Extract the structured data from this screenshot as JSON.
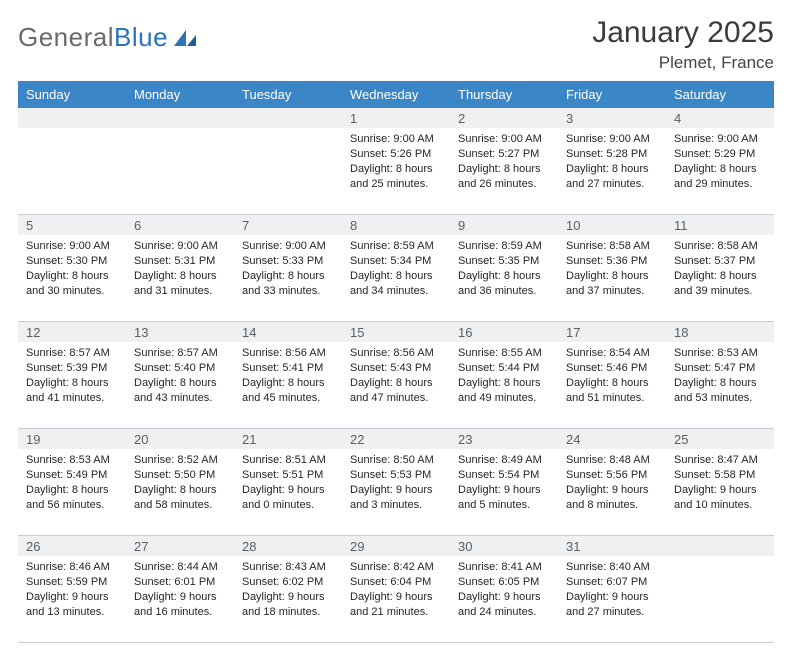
{
  "brand": {
    "name_gray": "General",
    "name_blue": "Blue"
  },
  "title": "January 2025",
  "location": "Plemet, France",
  "colors": {
    "header_bg": "#3b86c6",
    "header_text": "#ffffff",
    "daynum_bg": "#eef0f2",
    "border": "#c7cdd2",
    "logo_gray": "#6a6a6a",
    "logo_blue": "#2d73b7"
  },
  "day_headers": [
    "Sunday",
    "Monday",
    "Tuesday",
    "Wednesday",
    "Thursday",
    "Friday",
    "Saturday"
  ],
  "weeks": [
    [
      null,
      null,
      null,
      {
        "n": "1",
        "sunrise": "9:00 AM",
        "sunset": "5:26 PM",
        "daylight": "8 hours and 25 minutes."
      },
      {
        "n": "2",
        "sunrise": "9:00 AM",
        "sunset": "5:27 PM",
        "daylight": "8 hours and 26 minutes."
      },
      {
        "n": "3",
        "sunrise": "9:00 AM",
        "sunset": "5:28 PM",
        "daylight": "8 hours and 27 minutes."
      },
      {
        "n": "4",
        "sunrise": "9:00 AM",
        "sunset": "5:29 PM",
        "daylight": "8 hours and 29 minutes."
      }
    ],
    [
      {
        "n": "5",
        "sunrise": "9:00 AM",
        "sunset": "5:30 PM",
        "daylight": "8 hours and 30 minutes."
      },
      {
        "n": "6",
        "sunrise": "9:00 AM",
        "sunset": "5:31 PM",
        "daylight": "8 hours and 31 minutes."
      },
      {
        "n": "7",
        "sunrise": "9:00 AM",
        "sunset": "5:33 PM",
        "daylight": "8 hours and 33 minutes."
      },
      {
        "n": "8",
        "sunrise": "8:59 AM",
        "sunset": "5:34 PM",
        "daylight": "8 hours and 34 minutes."
      },
      {
        "n": "9",
        "sunrise": "8:59 AM",
        "sunset": "5:35 PM",
        "daylight": "8 hours and 36 minutes."
      },
      {
        "n": "10",
        "sunrise": "8:58 AM",
        "sunset": "5:36 PM",
        "daylight": "8 hours and 37 minutes."
      },
      {
        "n": "11",
        "sunrise": "8:58 AM",
        "sunset": "5:37 PM",
        "daylight": "8 hours and 39 minutes."
      }
    ],
    [
      {
        "n": "12",
        "sunrise": "8:57 AM",
        "sunset": "5:39 PM",
        "daylight": "8 hours and 41 minutes."
      },
      {
        "n": "13",
        "sunrise": "8:57 AM",
        "sunset": "5:40 PM",
        "daylight": "8 hours and 43 minutes."
      },
      {
        "n": "14",
        "sunrise": "8:56 AM",
        "sunset": "5:41 PM",
        "daylight": "8 hours and 45 minutes."
      },
      {
        "n": "15",
        "sunrise": "8:56 AM",
        "sunset": "5:43 PM",
        "daylight": "8 hours and 47 minutes."
      },
      {
        "n": "16",
        "sunrise": "8:55 AM",
        "sunset": "5:44 PM",
        "daylight": "8 hours and 49 minutes."
      },
      {
        "n": "17",
        "sunrise": "8:54 AM",
        "sunset": "5:46 PM",
        "daylight": "8 hours and 51 minutes."
      },
      {
        "n": "18",
        "sunrise": "8:53 AM",
        "sunset": "5:47 PM",
        "daylight": "8 hours and 53 minutes."
      }
    ],
    [
      {
        "n": "19",
        "sunrise": "8:53 AM",
        "sunset": "5:49 PM",
        "daylight": "8 hours and 56 minutes."
      },
      {
        "n": "20",
        "sunrise": "8:52 AM",
        "sunset": "5:50 PM",
        "daylight": "8 hours and 58 minutes."
      },
      {
        "n": "21",
        "sunrise": "8:51 AM",
        "sunset": "5:51 PM",
        "daylight": "9 hours and 0 minutes."
      },
      {
        "n": "22",
        "sunrise": "8:50 AM",
        "sunset": "5:53 PM",
        "daylight": "9 hours and 3 minutes."
      },
      {
        "n": "23",
        "sunrise": "8:49 AM",
        "sunset": "5:54 PM",
        "daylight": "9 hours and 5 minutes."
      },
      {
        "n": "24",
        "sunrise": "8:48 AM",
        "sunset": "5:56 PM",
        "daylight": "9 hours and 8 minutes."
      },
      {
        "n": "25",
        "sunrise": "8:47 AM",
        "sunset": "5:58 PM",
        "daylight": "9 hours and 10 minutes."
      }
    ],
    [
      {
        "n": "26",
        "sunrise": "8:46 AM",
        "sunset": "5:59 PM",
        "daylight": "9 hours and 13 minutes."
      },
      {
        "n": "27",
        "sunrise": "8:44 AM",
        "sunset": "6:01 PM",
        "daylight": "9 hours and 16 minutes."
      },
      {
        "n": "28",
        "sunrise": "8:43 AM",
        "sunset": "6:02 PM",
        "daylight": "9 hours and 18 minutes."
      },
      {
        "n": "29",
        "sunrise": "8:42 AM",
        "sunset": "6:04 PM",
        "daylight": "9 hours and 21 minutes."
      },
      {
        "n": "30",
        "sunrise": "8:41 AM",
        "sunset": "6:05 PM",
        "daylight": "9 hours and 24 minutes."
      },
      {
        "n": "31",
        "sunrise": "8:40 AM",
        "sunset": "6:07 PM",
        "daylight": "9 hours and 27 minutes."
      },
      null
    ]
  ],
  "labels": {
    "sunrise": "Sunrise:",
    "sunset": "Sunset:",
    "daylight": "Daylight:"
  }
}
